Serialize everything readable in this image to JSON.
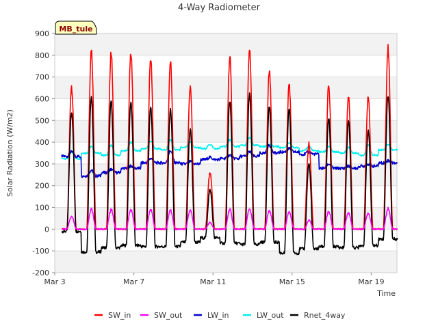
{
  "chart_data": {
    "type": "line",
    "title": "4-Way Radiometer",
    "site_label": "MB_tule",
    "xlabel": "Time",
    "ylabel": "Solar Radiation (W/m2)",
    "ylim": [
      -200,
      900
    ],
    "yticks": [
      -200,
      -100,
      0,
      100,
      200,
      300,
      400,
      500,
      600,
      700,
      800,
      900
    ],
    "xlim": [
      0,
      17.3
    ],
    "xtick_values": [
      0,
      4,
      8,
      12,
      16
    ],
    "xtick_labels": [
      "Mar 3",
      "Mar 7",
      "Mar 11",
      "Mar 15",
      "Mar 19"
    ],
    "day_offset": 0.35,
    "num_days": 17,
    "days": [
      {
        "sw_in": 660,
        "sw_out": 60,
        "lw_in_day": 355,
        "lw_in_night": 335,
        "lw_out_day": 355,
        "lw_out_night": 325,
        "rnet_peak": 540,
        "rnet_night": -10
      },
      {
        "sw_in": 830,
        "sw_out": 95,
        "lw_in_day": 270,
        "lw_in_night": 245,
        "lw_out_day": 380,
        "lw_out_night": 350,
        "rnet_peak": 610,
        "rnet_night": -105
      },
      {
        "sw_in": 815,
        "sw_out": 90,
        "lw_in_day": 275,
        "lw_in_night": 260,
        "lw_out_day": 385,
        "lw_out_night": 340,
        "rnet_peak": 590,
        "rnet_night": -85
      },
      {
        "sw_in": 810,
        "sw_out": 88,
        "lw_in_day": 290,
        "lw_in_night": 280,
        "lw_out_day": 400,
        "lw_out_night": 360,
        "rnet_peak": 585,
        "rnet_night": -75
      },
      {
        "sw_in": 785,
        "sw_out": 90,
        "lw_in_day": 325,
        "lw_in_night": 305,
        "lw_out_day": 405,
        "lw_out_night": 370,
        "rnet_peak": 560,
        "rnet_night": -80
      },
      {
        "sw_in": 770,
        "sw_out": 88,
        "lw_in_day": 360,
        "lw_in_night": 305,
        "lw_out_day": 410,
        "lw_out_night": 365,
        "rnet_peak": 550,
        "rnet_night": -80
      },
      {
        "sw_in": 650,
        "sw_out": 85,
        "lw_in_day": 310,
        "lw_in_night": 300,
        "lw_out_day": 400,
        "lw_out_night": 375,
        "rnet_peak": 460,
        "rnet_night": -60
      },
      {
        "sw_in": 260,
        "sw_out": 30,
        "lw_in_day": 330,
        "lw_in_night": 320,
        "lw_out_day": 390,
        "lw_out_night": 370,
        "rnet_peak": 180,
        "rnet_night": -40
      },
      {
        "sw_in": 790,
        "sw_out": 90,
        "lw_in_day": 340,
        "lw_in_night": 325,
        "lw_out_day": 410,
        "lw_out_night": 380,
        "rnet_peak": 590,
        "rnet_night": -65
      },
      {
        "sw_in": 820,
        "sw_out": 90,
        "lw_in_day": 355,
        "lw_in_night": 335,
        "lw_out_day": 420,
        "lw_out_night": 385,
        "rnet_peak": 620,
        "rnet_night": -70
      },
      {
        "sw_in": 730,
        "sw_out": 85,
        "lw_in_day": 385,
        "lw_in_night": 350,
        "lw_out_day": 390,
        "lw_out_night": 380,
        "rnet_peak": 565,
        "rnet_night": -60
      },
      {
        "sw_in": 670,
        "sw_out": 80,
        "lw_in_day": 370,
        "lw_in_night": 355,
        "lw_out_day": 395,
        "lw_out_night": 375,
        "rnet_peak": 555,
        "rnet_night": -110
      },
      {
        "sw_in": 390,
        "sw_out": 40,
        "lw_in_day": 355,
        "lw_in_night": 345,
        "lw_out_day": 380,
        "lw_out_night": 360,
        "rnet_peak": 300,
        "rnet_night": -90
      },
      {
        "sw_in": 660,
        "sw_out": 80,
        "lw_in_day": 300,
        "lw_in_night": 280,
        "lw_out_day": 380,
        "lw_out_night": 355,
        "rnet_peak": 510,
        "rnet_night": -80
      },
      {
        "sw_in": 610,
        "sw_out": 75,
        "lw_in_day": 290,
        "lw_in_night": 280,
        "lw_out_day": 375,
        "lw_out_night": 350,
        "rnet_peak": 500,
        "rnet_night": -85
      },
      {
        "sw_in": 615,
        "sw_out": 75,
        "lw_in_day": 300,
        "lw_in_night": 290,
        "lw_out_day": 385,
        "lw_out_night": 340,
        "rnet_peak": 455,
        "rnet_night": -75
      },
      {
        "sw_in": 835,
        "sw_out": 95,
        "lw_in_day": 315,
        "lw_in_night": 305,
        "lw_out_day": 390,
        "lw_out_night": 365,
        "rnet_peak": 615,
        "rnet_night": -45
      }
    ],
    "series": [
      {
        "name": "SW_in",
        "color": "#ff0000"
      },
      {
        "name": "SW_out",
        "color": "#ff00ff"
      },
      {
        "name": "LW_in",
        "color": "#0000cc"
      },
      {
        "name": "LW_out",
        "color": "#00eeee"
      },
      {
        "name": "Rnet_4way",
        "color": "#000000"
      }
    ]
  }
}
